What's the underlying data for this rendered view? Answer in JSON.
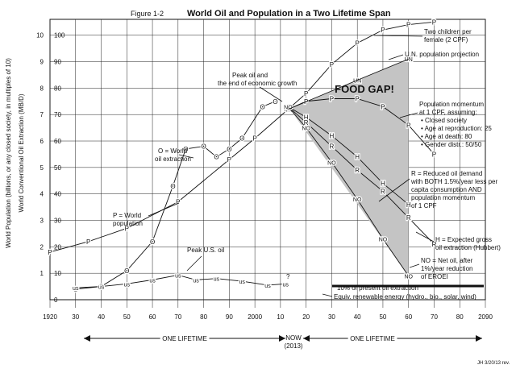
{
  "figure_label": "Figure 1-2",
  "chart_data": {
    "type": "line",
    "title": "World Oil and Population in a Two Lifetime Span",
    "ylabel_left": "World Population (billions, or any closed society, in multiples of 10)",
    "ylabel_right": "World Conventional Oil Extraction (MB/D)",
    "x_ticks": [
      "1920",
      "30",
      "40",
      "50",
      "60",
      "70",
      "80",
      "90",
      "2000",
      "10",
      "20",
      "30",
      "40",
      "50",
      "60",
      "70",
      "80",
      "2090"
    ],
    "x_tick_years": [
      1920,
      1930,
      1940,
      1950,
      1960,
      1970,
      1980,
      1990,
      2000,
      2010,
      2020,
      2030,
      2040,
      2050,
      2060,
      2070,
      2080,
      2090
    ],
    "y_left_ticks": [
      1,
      2,
      3,
      4,
      5,
      6,
      7,
      8,
      9,
      10
    ],
    "y_right_ticks": [
      0,
      10,
      20,
      30,
      40,
      50,
      60,
      70,
      80,
      90,
      100
    ],
    "xlim": [
      1920,
      2090
    ],
    "ylim": [
      0,
      10.6
    ],
    "series": [
      {
        "name": "P = World population",
        "marker": "P",
        "x": [
          1920,
          1935,
          1950,
          1970,
          1990,
          2000,
          2013,
          2020,
          2030,
          2040,
          2050,
          2060,
          2070
        ],
        "y": [
          1.8,
          2.2,
          2.7,
          3.7,
          5.3,
          6.1,
          7.2,
          7.8,
          8.9,
          9.7,
          10.2,
          10.4,
          10.5
        ]
      },
      {
        "name": "O = World oil extraction",
        "marker": "O",
        "x": [
          1930,
          1940,
          1950,
          1960,
          1968,
          1973,
          1980,
          1985,
          1990,
          1995,
          2003,
          2008
        ],
        "y": [
          0.4,
          0.5,
          1.1,
          2.2,
          4.3,
          5.7,
          5.8,
          5.4,
          5.7,
          6.1,
          7.3,
          7.5
        ]
      },
      {
        "name": "UN population projection",
        "marker": "UN",
        "x": [
          2013,
          2040,
          2060
        ],
        "y": [
          7.2,
          8.3,
          9.1
        ]
      },
      {
        "name": "P = Population momentum at 1 CPF",
        "marker": "P",
        "x": [
          2013,
          2020,
          2030,
          2040,
          2050,
          2060,
          2070
        ],
        "y": [
          7.2,
          7.5,
          7.6,
          7.6,
          7.3,
          6.6,
          5.5
        ]
      },
      {
        "name": "H = Expected gross oil extraction (Hubbert)",
        "marker": "H",
        "x": [
          2013,
          2020,
          2030,
          2040,
          2050,
          2060
        ],
        "y": [
          7.3,
          6.9,
          6.2,
          5.4,
          4.4,
          3.6
        ]
      },
      {
        "name": "R = Reduced oil demand",
        "marker": "R",
        "x": [
          2013,
          2020,
          2030,
          2040,
          2050,
          2060,
          2070
        ],
        "y": [
          7.3,
          6.7,
          5.8,
          4.9,
          4.1,
          3.1,
          2.1
        ]
      },
      {
        "name": "NO = Net oil",
        "marker": "NO",
        "x": [
          2013,
          2020,
          2030,
          2040,
          2050,
          2060
        ],
        "y": [
          7.3,
          6.5,
          5.2,
          3.8,
          2.3,
          0.9
        ]
      },
      {
        "name": "US = Peak U.S. oil",
        "marker": "us",
        "x": [
          1930,
          1940,
          1950,
          1960,
          1970,
          1977,
          1985,
          1995,
          2005,
          2012
        ],
        "y": [
          0.45,
          0.5,
          0.6,
          0.75,
          0.93,
          0.75,
          0.8,
          0.7,
          0.55,
          0.6
        ]
      }
    ],
    "annotations": {
      "food_gap": "FOOD GAP!",
      "peak_oil": [
        "Peak oil and",
        "the end of economic growth"
      ],
      "oil_extraction_label": [
        "O = World",
        "oil extraction"
      ],
      "population_label": [
        "P = World",
        "population"
      ],
      "two_children": [
        "Two children per",
        "female (2 CPF)"
      ],
      "un_projection": "U.N. population projection",
      "momentum": [
        "Population momentum",
        "at 1 CPF, assuming:"
      ],
      "momentum_bullets": [
        "Closed society",
        "Age at reproduction: 25",
        "Age at death: 80",
        "Gender distr.: 50/50"
      ],
      "reduced_demand": [
        "R = Reduced oil demand",
        "with BOTH 1.5%/year less per",
        "capita consumption AND",
        "population momentum",
        "of 1 CPF"
      ],
      "hubbert": [
        "H = Expected gross",
        "oil extraction (Hubbert)"
      ],
      "net_oil": [
        "NO = Net oil, after",
        "1%/year reduction",
        "of EROEI"
      ],
      "ten_percent": "10% of present oil extraction",
      "renewable": "Equiv. renewable energy (hydro., bio., solar, wind)",
      "peak_us": "Peak U.S. oil",
      "question_mark": "?",
      "one_lifetime_left": "ONE LIFETIME",
      "now": [
        "NOW",
        "(2013)"
      ],
      "one_lifetime_right": "ONE LIFETIME",
      "credit": "JH 3/20/13 rev."
    }
  }
}
